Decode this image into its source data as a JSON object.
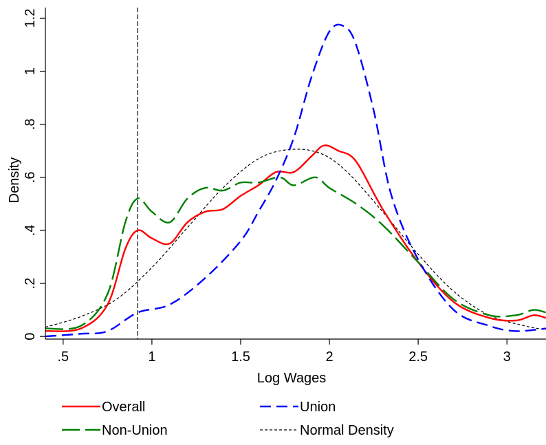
{
  "chart_data": {
    "type": "line",
    "xlabel": "Log Wages",
    "ylabel": "Density",
    "xlim": [
      0.4,
      3.22
    ],
    "ylim": [
      -0.01,
      1.24
    ],
    "x_ticks": [
      0.5,
      1,
      1.5,
      2,
      2.5,
      3
    ],
    "x_tick_labels": [
      ".5",
      "1",
      "1.5",
      "2",
      "2.5",
      "3"
    ],
    "y_ticks": [
      0,
      0.2,
      0.4,
      0.6,
      0.8,
      1,
      1.2
    ],
    "y_tick_labels": [
      "0",
      ".2",
      ".4",
      ".6",
      ".8",
      "1",
      "1.2"
    ],
    "grid": false,
    "legend_position": "bottom",
    "vline_x": 0.92,
    "series": [
      {
        "name": "Overall",
        "color": "#ff0000",
        "dash": "solid",
        "x": [
          0.4,
          0.6,
          0.75,
          0.85,
          0.92,
          1.0,
          1.1,
          1.2,
          1.3,
          1.4,
          1.5,
          1.6,
          1.7,
          1.8,
          1.9,
          1.97,
          2.05,
          2.15,
          2.3,
          2.5,
          2.7,
          2.9,
          3.05,
          3.15,
          3.22
        ],
        "y": [
          0.02,
          0.03,
          0.12,
          0.33,
          0.4,
          0.37,
          0.35,
          0.43,
          0.47,
          0.48,
          0.53,
          0.57,
          0.62,
          0.62,
          0.68,
          0.72,
          0.7,
          0.66,
          0.48,
          0.28,
          0.13,
          0.07,
          0.06,
          0.08,
          0.07
        ]
      },
      {
        "name": "Union",
        "color": "#0000ff",
        "dash": "dash",
        "x": [
          0.4,
          0.6,
          0.75,
          0.92,
          1.1,
          1.3,
          1.5,
          1.6,
          1.7,
          1.8,
          1.9,
          2.0,
          2.08,
          2.15,
          2.25,
          2.35,
          2.5,
          2.7,
          2.9,
          3.05,
          3.22
        ],
        "y": [
          0.0,
          0.01,
          0.02,
          0.09,
          0.12,
          0.22,
          0.36,
          0.47,
          0.59,
          0.75,
          0.98,
          1.15,
          1.17,
          1.1,
          0.85,
          0.53,
          0.29,
          0.1,
          0.04,
          0.02,
          0.03
        ]
      },
      {
        "name": "Non-Union",
        "color": "#008000",
        "dash": "longdash",
        "x": [
          0.4,
          0.6,
          0.75,
          0.85,
          0.92,
          1.0,
          1.1,
          1.2,
          1.3,
          1.4,
          1.5,
          1.6,
          1.72,
          1.8,
          1.92,
          2.0,
          2.15,
          2.3,
          2.5,
          2.7,
          2.9,
          3.05,
          3.15,
          3.22
        ],
        "y": [
          0.03,
          0.04,
          0.16,
          0.43,
          0.52,
          0.47,
          0.43,
          0.52,
          0.56,
          0.55,
          0.58,
          0.58,
          0.6,
          0.57,
          0.6,
          0.56,
          0.5,
          0.42,
          0.28,
          0.14,
          0.08,
          0.08,
          0.1,
          0.09
        ]
      },
      {
        "name": "Normal Density",
        "color": "#000000",
        "dash": "shortdash",
        "x": [
          0.4,
          0.6,
          0.8,
          1.0,
          1.2,
          1.4,
          1.6,
          1.78,
          1.95,
          2.1,
          2.3,
          2.5,
          2.7,
          2.9,
          3.1,
          3.22
        ],
        "y": [
          0.035,
          0.075,
          0.14,
          0.26,
          0.41,
          0.56,
          0.67,
          0.705,
          0.69,
          0.62,
          0.47,
          0.31,
          0.17,
          0.08,
          0.04,
          0.025
        ]
      }
    ]
  }
}
